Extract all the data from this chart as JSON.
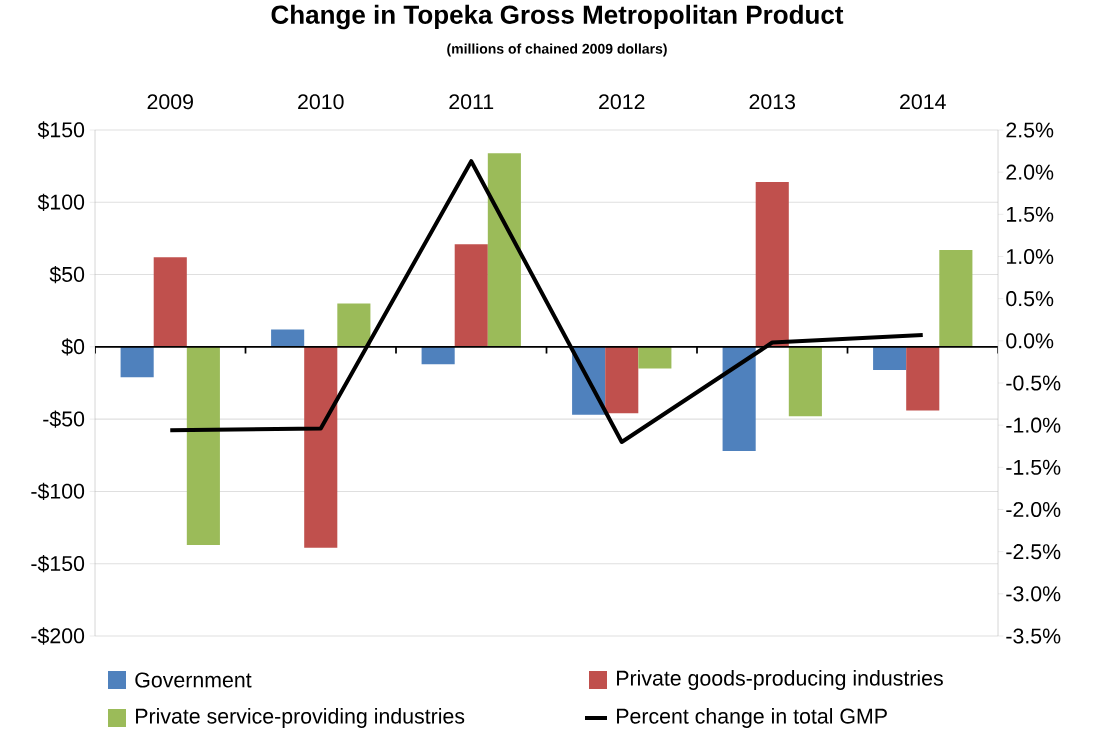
{
  "chart_data": {
    "type": "bar",
    "title": "Change in Topeka Gross Metropolitan Product",
    "subtitle": "(millions of chained 2009 dollars)",
    "categories": [
      "2009",
      "2010",
      "2011",
      "2012",
      "2013",
      "2014"
    ],
    "series": [
      {
        "name": "Government",
        "color": "#4f81bd",
        "values": [
          -21,
          12,
          -12,
          -47,
          -72,
          -16
        ]
      },
      {
        "name": "Private goods-producing industries",
        "color": "#c0504d",
        "values": [
          62,
          -139,
          71,
          -46,
          114,
          -44
        ]
      },
      {
        "name": "Private service-providing industries",
        "color": "#9bbb59",
        "values": [
          -137,
          30,
          134,
          -15,
          -48,
          67
        ]
      },
      {
        "name": "Percent change in total GMP",
        "type": "line",
        "axis": "y2",
        "color": "#000000",
        "values": [
          -1.06,
          -1.04,
          2.13,
          -1.2,
          -0.02,
          0.07
        ]
      }
    ],
    "ylim": [
      -200,
      150
    ],
    "yticks": [
      {
        "value": 150,
        "label": "$150"
      },
      {
        "value": 100,
        "label": "$100"
      },
      {
        "value": 50,
        "label": "$50"
      },
      {
        "value": 0,
        "label": "$0"
      },
      {
        "value": -50,
        "label": "-$50"
      },
      {
        "value": -100,
        "label": "-$100"
      },
      {
        "value": -150,
        "label": "-$150"
      },
      {
        "value": -200,
        "label": "-$200"
      }
    ],
    "y2lim": [
      -3.5,
      2.5
    ],
    "y2ticks": [
      {
        "value": 2.5,
        "label": "2.5%"
      },
      {
        "value": 2.0,
        "label": "2.0%"
      },
      {
        "value": 1.5,
        "label": "1.5%"
      },
      {
        "value": 1.0,
        "label": "1.0%"
      },
      {
        "value": 0.5,
        "label": "0.5%"
      },
      {
        "value": 0.0,
        "label": "0.0%"
      },
      {
        "value": -0.5,
        "label": "-0.5%"
      },
      {
        "value": -1.0,
        "label": "-1.0%"
      },
      {
        "value": -1.5,
        "label": "-1.5%"
      },
      {
        "value": -2.0,
        "label": "-2.0%"
      },
      {
        "value": -2.5,
        "label": "-2.5%"
      },
      {
        "value": -3.0,
        "label": "-3.0%"
      },
      {
        "value": -3.5,
        "label": "-3.5%"
      }
    ],
    "grid": "y",
    "legend": "bottom",
    "line_style": "solid"
  }
}
